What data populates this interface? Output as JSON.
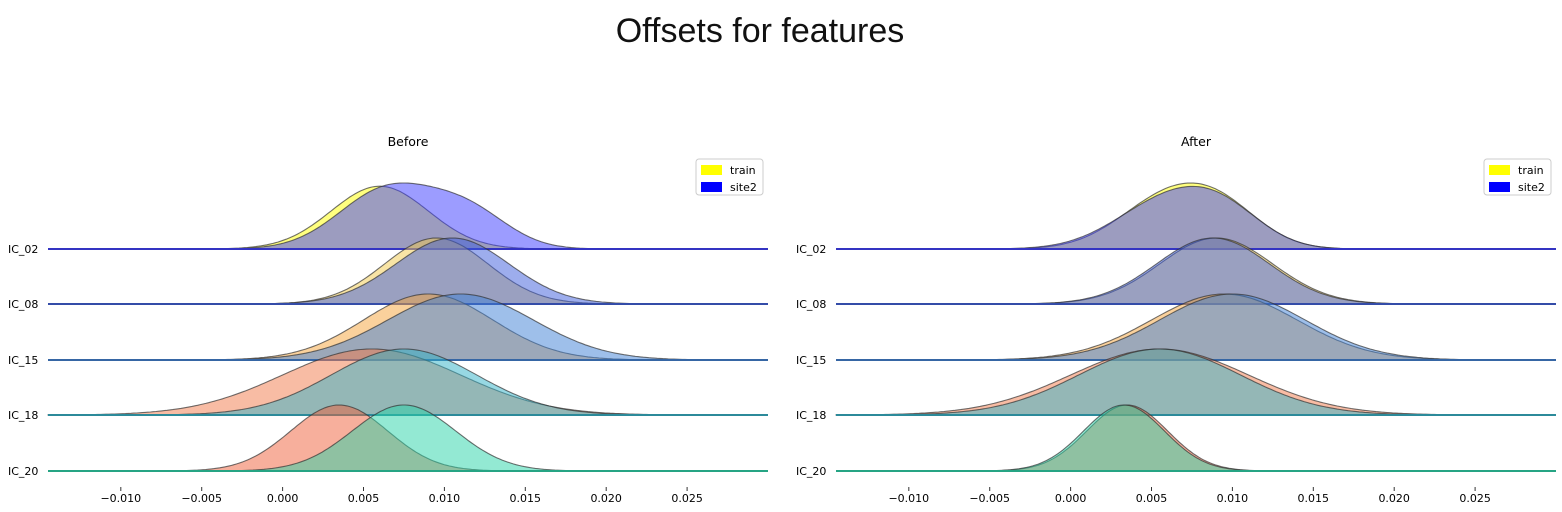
{
  "title": "Offsets for features",
  "colors": {
    "train": "#ffff00",
    "site2": "#0000ff",
    "IC_02": {
      "train": "#ffff00",
      "site2": "#3a3aff"
    },
    "IC_08": {
      "train": "#f2c94c",
      "site2": "#3b5bdb"
    },
    "IC_15": {
      "train": "#f5a43a",
      "site2": "#3d7fd6"
    },
    "IC_18": {
      "train": "#f27a4a",
      "site2": "#2fb2c8"
    },
    "IC_20": {
      "train": "#f0603a",
      "site2": "#28d4a8"
    }
  },
  "chart_data": [
    {
      "type": "area",
      "title": "Before",
      "categories": [
        "IC_02",
        "IC_08",
        "IC_15",
        "IC_18",
        "IC_20"
      ],
      "x_ticks": [
        -0.01,
        -0.005,
        0.0,
        0.005,
        0.01,
        0.015,
        0.02,
        0.025
      ],
      "x_tick_labels": [
        "−0.010",
        "−0.005",
        "0.000",
        "0.005",
        "0.010",
        "0.015",
        "0.020",
        "0.025"
      ],
      "xlim": [
        -0.0145,
        0.03
      ],
      "legend": {
        "placement": "top-right",
        "entries": [
          "train",
          "site2"
        ]
      },
      "grid": false,
      "series": [
        {
          "feature": "IC_02",
          "name": "train",
          "peaks": [
            [
              0.006,
              1.0,
              0.003
            ]
          ]
        },
        {
          "feature": "IC_02",
          "name": "site2",
          "peaks": [
            [
              0.0065,
              0.95,
              0.003
            ],
            [
              0.0115,
              0.55,
              0.0025
            ]
          ]
        },
        {
          "feature": "IC_08",
          "name": "train",
          "peaks": [
            [
              0.0095,
              1.0,
              0.0032
            ]
          ]
        },
        {
          "feature": "IC_08",
          "name": "site2",
          "peaks": [
            [
              0.0105,
              1.0,
              0.0035
            ]
          ]
        },
        {
          "feature": "IC_15",
          "name": "train",
          "peaks": [
            [
              0.009,
              1.0,
              0.004
            ]
          ]
        },
        {
          "feature": "IC_15",
          "name": "site2",
          "peaks": [
            [
              0.011,
              1.0,
              0.0045
            ]
          ]
        },
        {
          "feature": "IC_18",
          "name": "train",
          "peaks": [
            [
              0.0055,
              1.0,
              0.0055
            ]
          ]
        },
        {
          "feature": "IC_18",
          "name": "site2",
          "peaks": [
            [
              0.0075,
              1.0,
              0.0045
            ]
          ]
        },
        {
          "feature": "IC_20",
          "name": "train",
          "peaks": [
            [
              0.0035,
              1.0,
              0.003
            ]
          ]
        },
        {
          "feature": "IC_20",
          "name": "site2",
          "peaks": [
            [
              0.0075,
              1.0,
              0.0032
            ]
          ]
        }
      ]
    },
    {
      "type": "area",
      "title": "After",
      "categories": [
        "IC_02",
        "IC_08",
        "IC_15",
        "IC_18",
        "IC_20"
      ],
      "x_ticks": [
        -0.01,
        -0.005,
        0.0,
        0.005,
        0.01,
        0.015,
        0.02,
        0.025
      ],
      "x_tick_labels": [
        "−0.010",
        "−0.005",
        "0.000",
        "0.005",
        "0.010",
        "0.015",
        "0.020",
        "0.025"
      ],
      "xlim": [
        -0.0145,
        0.03
      ],
      "legend": {
        "placement": "top-right",
        "entries": [
          "train",
          "site2"
        ]
      },
      "grid": false,
      "series": [
        {
          "feature": "IC_02",
          "name": "train",
          "peaks": [
            [
              0.006,
              1.0,
              0.003
            ],
            [
              0.0095,
              0.6,
              0.0025
            ]
          ]
        },
        {
          "feature": "IC_02",
          "name": "site2",
          "peaks": [
            [
              0.006,
              0.95,
              0.0032
            ],
            [
              0.0095,
              0.55,
              0.0025
            ]
          ]
        },
        {
          "feature": "IC_08",
          "name": "train",
          "peaks": [
            [
              0.009,
              1.0,
              0.0035
            ]
          ]
        },
        {
          "feature": "IC_08",
          "name": "site2",
          "peaks": [
            [
              0.0088,
              1.0,
              0.0035
            ]
          ]
        },
        {
          "feature": "IC_15",
          "name": "train",
          "peaks": [
            [
              0.0095,
              1.0,
              0.0045
            ]
          ]
        },
        {
          "feature": "IC_15",
          "name": "site2",
          "peaks": [
            [
              0.01,
              1.0,
              0.0045
            ]
          ]
        },
        {
          "feature": "IC_18",
          "name": "train",
          "peaks": [
            [
              0.0055,
              1.0,
              0.0055
            ]
          ]
        },
        {
          "feature": "IC_18",
          "name": "site2",
          "peaks": [
            [
              0.0055,
              1.0,
              0.005
            ]
          ]
        },
        {
          "feature": "IC_20",
          "name": "train",
          "peaks": [
            [
              0.0035,
              1.0,
              0.0025
            ]
          ]
        },
        {
          "feature": "IC_20",
          "name": "site2",
          "peaks": [
            [
              0.0033,
              1.0,
              0.0025
            ]
          ]
        }
      ]
    }
  ]
}
